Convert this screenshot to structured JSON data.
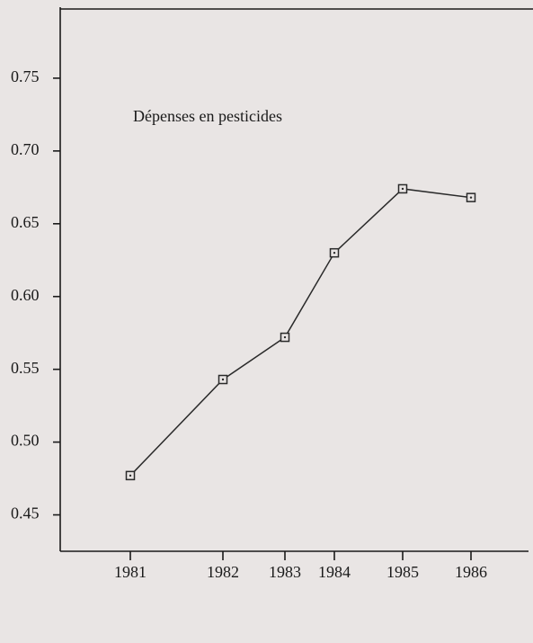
{
  "chart_data": {
    "type": "line",
    "annotation": "Dépenses en pesticides",
    "categories": [
      "1981",
      "1982",
      "1983",
      "1984",
      "1985",
      "1986"
    ],
    "series": [
      {
        "name": "Dépenses en pesticides",
        "color": "#2a2a2a",
        "values": [
          0.477,
          0.543,
          0.572,
          0.63,
          0.674,
          0.668
        ]
      }
    ],
    "ylim": [
      0.425,
      0.8
    ],
    "yticks": [
      0.45,
      {
        "value": 0.5,
        "label": "0.50"
      },
      0.55,
      {
        "value": 0.6,
        "label": "0.60"
      },
      0.65,
      {
        "value": 0.7,
        "label": "0.70"
      },
      0.75
    ]
  }
}
